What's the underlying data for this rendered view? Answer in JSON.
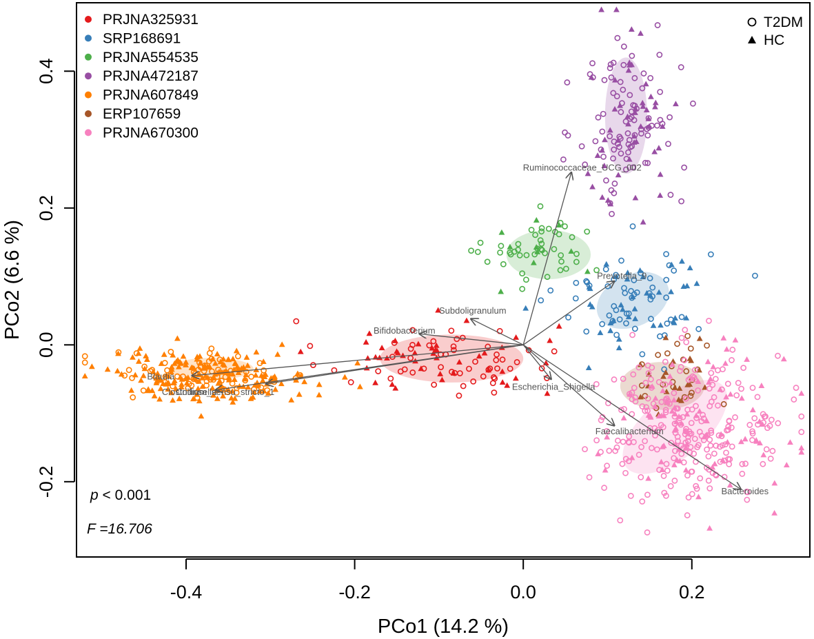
{
  "chart_data": {
    "type": "scatter",
    "title": "",
    "xlabel": "PCo1 (14.2 %)",
    "ylabel": "PCo2 (6.6 %)",
    "xlim": [
      -0.53,
      0.34
    ],
    "ylim": [
      -0.31,
      0.5
    ],
    "xticks": [
      -0.4,
      -0.2,
      0.0,
      0.2
    ],
    "xtick_labels": [
      "-0.4",
      "-0.2",
      "0.0",
      "0.2"
    ],
    "yticks": [
      -0.2,
      0.0,
      0.2,
      0.4
    ],
    "ytick_labels": [
      "-0.2",
      "0.0",
      "0.2",
      "0.4"
    ],
    "grid": false,
    "legend_projects_position": "top-left",
    "legend_groups_position": "top-right",
    "groups": [
      {
        "name": "T2DM",
        "marker": "open-circle"
      },
      {
        "name": "HC",
        "marker": "filled-triangle"
      }
    ],
    "series": [
      {
        "name": "PRJNA325931",
        "color": "#e41a1c",
        "center": [
          -0.1,
          -0.02
        ],
        "spread": [
          0.07,
          0.028
        ],
        "n_t2dm": 55,
        "n_hc": 45,
        "ellipse": {
          "center": [
            -0.085,
            -0.02
          ],
          "radius": [
            0.085,
            0.035
          ],
          "angle_deg": 0
        }
      },
      {
        "name": "SRP168691",
        "color": "#377eb8",
        "center": [
          0.13,
          0.07
        ],
        "spread": [
          0.045,
          0.04
        ],
        "n_t2dm": 55,
        "n_hc": 40,
        "ellipse": {
          "center": [
            0.13,
            0.065
          ],
          "radius": [
            0.045,
            0.038
          ],
          "angle_deg": -25
        }
      },
      {
        "name": "PRJNA554535",
        "color": "#4daf4a",
        "center": [
          0.025,
          0.135
        ],
        "spread": [
          0.035,
          0.025
        ],
        "n_t2dm": 45,
        "n_hc": 10,
        "ellipse": {
          "center": [
            0.03,
            0.132
          ],
          "radius": [
            0.05,
            0.036
          ],
          "angle_deg": 0
        }
      },
      {
        "name": "PRJNA472187",
        "color": "#984ea3",
        "center": [
          0.125,
          0.33
        ],
        "spread": [
          0.03,
          0.07
        ],
        "n_t2dm": 90,
        "n_hc": 50,
        "ellipse": {
          "center": [
            0.122,
            0.335
          ],
          "radius": [
            0.025,
            0.085
          ],
          "angle_deg": 0
        }
      },
      {
        "name": "PRJNA607849",
        "color": "#ff7f00",
        "center": [
          -0.37,
          -0.045
        ],
        "spread": [
          0.06,
          0.018
        ],
        "n_t2dm": 70,
        "n_hc": 190,
        "ellipse": {
          "center": [
            -0.37,
            -0.035
          ],
          "radius": [
            0.05,
            0.016
          ],
          "angle_deg": 0
        }
      },
      {
        "name": "ERP107659",
        "color": "#a65628",
        "center": [
          0.18,
          -0.045
        ],
        "spread": [
          0.025,
          0.035
        ],
        "n_t2dm": 22,
        "n_hc": 22,
        "ellipse": {
          "center": [
            0.165,
            -0.06
          ],
          "radius": [
            0.05,
            0.035
          ],
          "angle_deg": 0
        }
      },
      {
        "name": "PRJNA670300",
        "color": "#f781bf",
        "center": [
          0.2,
          -0.12
        ],
        "spread": [
          0.055,
          0.055
        ],
        "n_t2dm": 240,
        "n_hc": 90,
        "ellipse": {
          "center": [
            0.18,
            -0.12
          ],
          "radius": [
            0.075,
            0.045
          ],
          "angle_deg": -40
        }
      }
    ],
    "vectors": [
      {
        "name": "Ruminococcaceae_UCG_002",
        "end": [
          0.057,
          0.252
        ],
        "label_at": [
          0.07,
          0.258
        ]
      },
      {
        "name": "Prevotella_9",
        "end": [
          0.108,
          0.093
        ],
        "label_at": [
          0.117,
          0.1
        ]
      },
      {
        "name": "Subdoligranulum",
        "end": [
          -0.062,
          0.038
        ],
        "label_at": [
          -0.06,
          0.049
        ]
      },
      {
        "name": "Bifidobacterium",
        "end": [
          -0.123,
          0.016
        ],
        "label_at": [
          -0.141,
          0.02
        ]
      },
      {
        "name": "Blautia",
        "end": [
          -0.393,
          -0.045
        ],
        "label_at": [
          -0.43,
          -0.047
        ]
      },
      {
        "name": "Clostridium_sensu_stricto_1",
        "end": [
          -0.305,
          -0.057
        ],
        "label_at": [
          -0.362,
          -0.07
        ]
      },
      {
        "name": "Collinsella",
        "end": [
          -0.365,
          -0.066
        ],
        "label_at": [
          -0.388,
          -0.07
        ]
      },
      {
        "name": "Escherichia_Shigella",
        "end": [
          0.033,
          -0.05
        ],
        "label_at": [
          0.036,
          -0.062
        ]
      },
      {
        "name": "Faecalibacterium",
        "end": [
          0.108,
          -0.118
        ],
        "label_at": [
          0.126,
          -0.127
        ]
      },
      {
        "name": "Bacteroides",
        "end": [
          0.258,
          -0.211
        ],
        "label_at": [
          0.263,
          -0.215
        ]
      }
    ],
    "annotations": {
      "p_italic": "p",
      "p_rest": " < 0.001",
      "f_text": "F =16.706"
    }
  }
}
